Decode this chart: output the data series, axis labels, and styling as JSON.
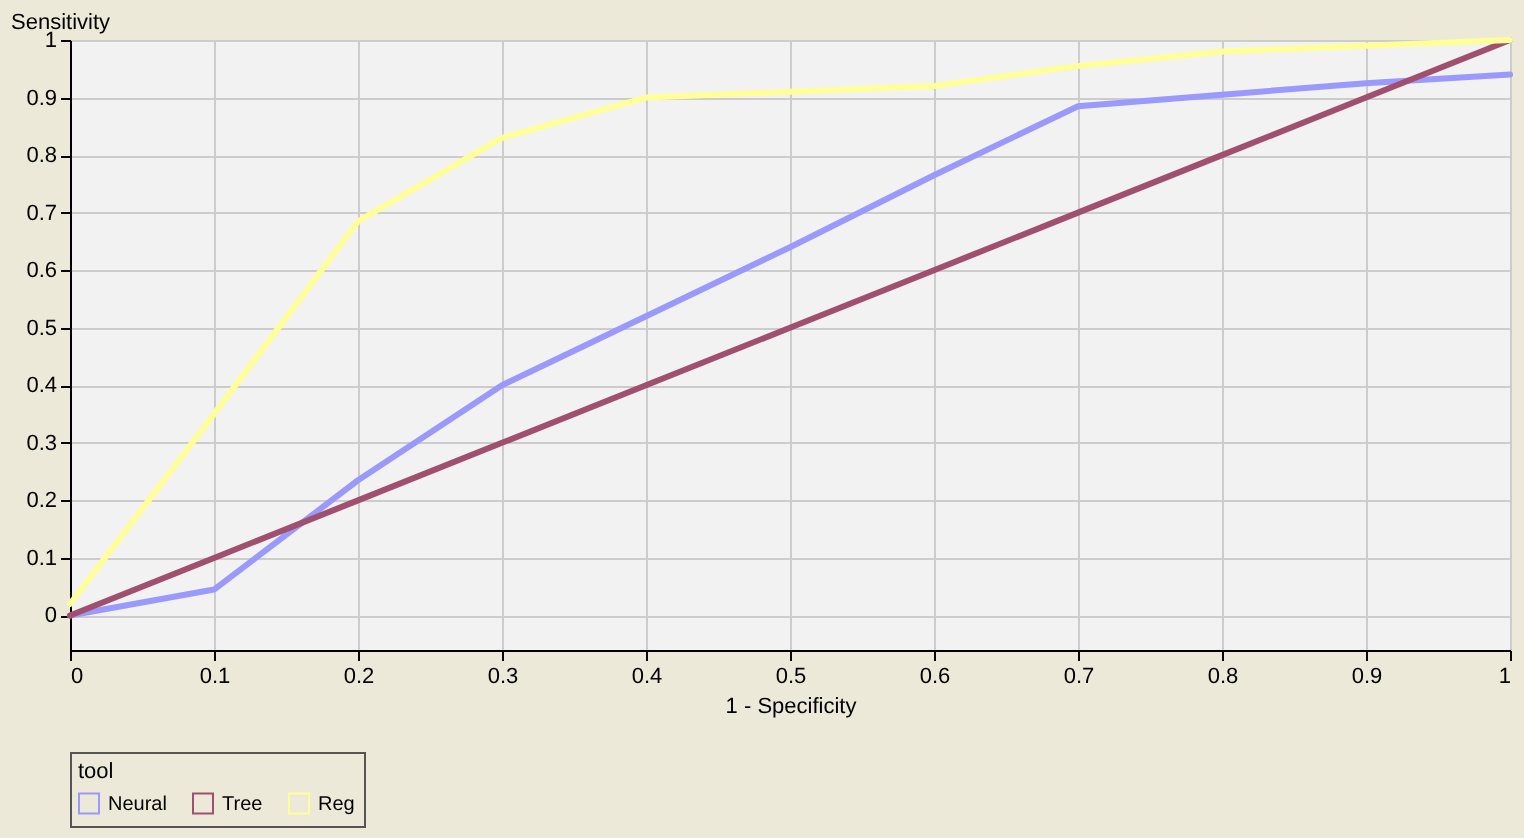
{
  "chart_data": {
    "type": "line",
    "xlabel": "1 - Specificity",
    "ylabel": "Sensitivity",
    "legend_title": "tool",
    "x": [
      0,
      0.1,
      0.2,
      0.3,
      0.4,
      0.5,
      0.6,
      0.7,
      0.8,
      0.9,
      1
    ],
    "series": [
      {
        "name": "Neural",
        "color": "#9999ff",
        "values": [
          0,
          0.045,
          0.235,
          0.4,
          0.52,
          0.64,
          0.765,
          0.885,
          0.905,
          0.925,
          0.94
        ]
      },
      {
        "name": "Tree",
        "color": "#a0506e",
        "values": [
          0,
          0.1,
          0.2,
          0.3,
          0.4,
          0.5,
          0.6,
          0.7,
          0.8,
          0.9,
          1
        ]
      },
      {
        "name": "Reg",
        "color": "#ffff99",
        "values": [
          0.02,
          0.35,
          0.685,
          0.83,
          0.9,
          0.91,
          0.92,
          0.955,
          0.98,
          0.99,
          1
        ]
      }
    ],
    "xlim": [
      0,
      1
    ],
    "xticks": [
      0,
      0.1,
      0.2,
      0.3,
      0.4,
      0.5,
      0.6,
      0.7,
      0.8,
      0.9,
      1
    ],
    "ylim": [
      -0.06,
      1
    ],
    "yticks": [
      0,
      0.1,
      0.2,
      0.3,
      0.4,
      0.5,
      0.6,
      0.7,
      0.8,
      0.9,
      1
    ],
    "grid": true,
    "legend": "bottom",
    "marker": "none",
    "line_style": "solid"
  }
}
